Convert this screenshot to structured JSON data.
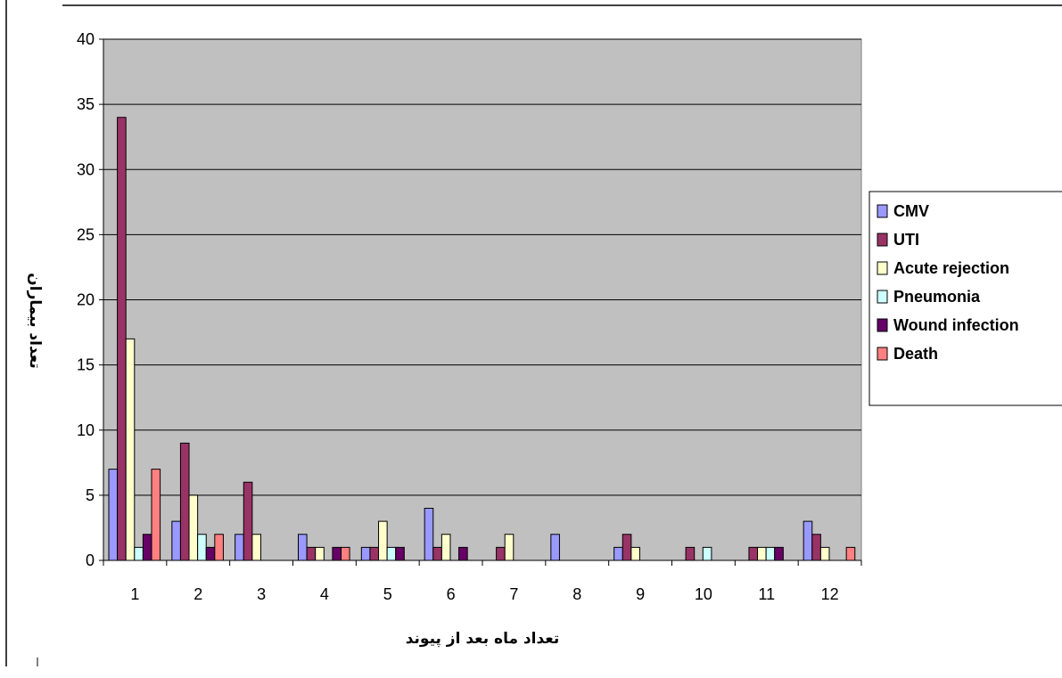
{
  "chart_data": {
    "type": "bar",
    "xlabel": "تعداد ماه بعد از پیوند",
    "ylabel": "تعداد بیماران",
    "ylim": [
      0,
      40
    ],
    "yticks": [
      0,
      5,
      10,
      15,
      20,
      25,
      30,
      35,
      40
    ],
    "grid": true,
    "legend_position": "right",
    "plot_background": "#c0c0c0",
    "categories": [
      "1",
      "2",
      "3",
      "4",
      "5",
      "6",
      "7",
      "8",
      "9",
      "10",
      "11",
      "12"
    ],
    "series": [
      {
        "name": "CMV",
        "color": "#9999ff",
        "values": [
          7,
          3,
          2,
          2,
          1,
          4,
          0,
          2,
          1,
          0,
          0,
          3
        ]
      },
      {
        "name": "UTI",
        "color": "#993366",
        "values": [
          34,
          9,
          6,
          1,
          1,
          1,
          1,
          0,
          2,
          1,
          1,
          2
        ]
      },
      {
        "name": "Acute rejection",
        "color": "#ffffcc",
        "values": [
          17,
          5,
          2,
          1,
          3,
          2,
          2,
          0,
          1,
          0,
          1,
          1
        ]
      },
      {
        "name": "Pneumonia",
        "color": "#ccffff",
        "values": [
          1,
          2,
          0,
          0,
          1,
          0,
          0,
          0,
          0,
          1,
          1,
          0
        ]
      },
      {
        "name": "Wound infection",
        "color": "#660066",
        "values": [
          2,
          1,
          0,
          1,
          1,
          1,
          0,
          0,
          0,
          0,
          1,
          0
        ]
      },
      {
        "name": "Death",
        "color": "#ff8080",
        "values": [
          7,
          2,
          0,
          1,
          0,
          0,
          0,
          0,
          0,
          0,
          0,
          1
        ]
      }
    ]
  }
}
